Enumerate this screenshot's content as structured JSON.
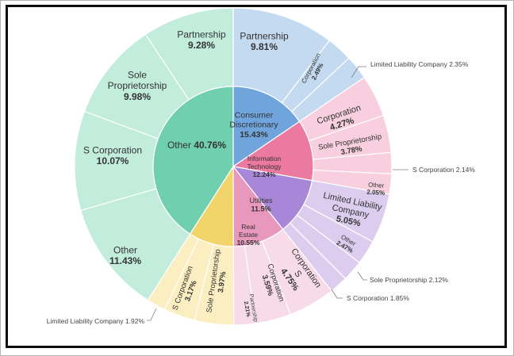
{
  "chart_data": {
    "type": "sunburst",
    "title": "",
    "children": [
      {
        "name": "Consumer Discretionary",
        "value": 15.43,
        "color": "#6fa5dc",
        "children": [
          {
            "name": "Partnership",
            "value": 9.81,
            "color": "#c4daf1"
          },
          {
            "name": "Corporation",
            "value": 2.49,
            "color": "#c4daf1"
          },
          {
            "name": "Limited Liability Company",
            "value": 2.35,
            "color": "#c4daf1"
          }
        ]
      },
      {
        "name": "Information Technology",
        "value": 12.24,
        "color": "#ec7aa0",
        "children": [
          {
            "name": "Corporation",
            "value": 4.27,
            "color": "#f8cfde"
          },
          {
            "name": "Sole Proprietorship",
            "value": 3.78,
            "color": "#f8cfde"
          },
          {
            "name": "S Corporation",
            "value": 2.14,
            "color": "#f8cfde"
          },
          {
            "name": "Other",
            "value": 2.05,
            "color": "#f8cfde"
          }
        ]
      },
      {
        "name": "Utilities",
        "value": 11.5,
        "color": "#a987d8",
        "children": [
          {
            "name": "Limited Liability Company",
            "value": 5.05,
            "color": "#dccdef"
          },
          {
            "name": "Other",
            "value": 2.47,
            "color": "#dccdef"
          },
          {
            "name": "Sole Proprietorship",
            "value": 2.12,
            "color": "#dccdef"
          },
          {
            "name": "S Corporation",
            "value": 1.85,
            "color": "#dccdef"
          }
        ]
      },
      {
        "name": "Real Estate",
        "value": 10.55,
        "color": "#e898bd",
        "children": [
          {
            "name": "S Corporation",
            "value": 4.75,
            "color": "#f7dbe8"
          },
          {
            "name": "Corporation",
            "value": 3.59,
            "color": "#f7dbe8"
          },
          {
            "name": "Partnership",
            "value": 2.21,
            "color": "#f7dbe8"
          }
        ]
      },
      {
        "name": "",
        "value": 9.06,
        "color": "#f1d56b",
        "children": [
          {
            "name": "Sole Proprietorship",
            "value": 3.97,
            "color": "#fbeec0"
          },
          {
            "name": "S Corporation",
            "value": 3.17,
            "color": "#fbeec0"
          },
          {
            "name": "Limited Liability Company",
            "value": 1.92,
            "color": "#fbeec0"
          }
        ]
      },
      {
        "name": "Other",
        "value": 40.76,
        "color": "#6fcfaf",
        "children": [
          {
            "name": "Other",
            "value": 11.43,
            "color": "#c2ecdc"
          },
          {
            "name": "S Corporation",
            "value": 10.07,
            "color": "#c2ecdc"
          },
          {
            "name": "Sole Proprietorship",
            "value": 9.98,
            "color": "#c2ecdc"
          },
          {
            "name": "Partnership",
            "value": 9.28,
            "color": "#c2ecdc"
          }
        ]
      }
    ]
  },
  "labels": {
    "inner": [
      {
        "name": "Consumer Discretionary",
        "lines": [
          "Consumer",
          "Discretionary"
        ],
        "pct": "15.43%"
      },
      {
        "name": "Information Technology",
        "lines": [
          "Information",
          "Technology"
        ],
        "pct": "12.24%"
      },
      {
        "name": "Utilities",
        "lines": [
          "Utilities"
        ],
        "pct": "11.5%"
      },
      {
        "name": "Real Estate",
        "lines": [
          "Real",
          "Estate"
        ],
        "pct": "10.55%"
      },
      {
        "name": "Other",
        "text": "Other",
        "pct": "40.76%"
      }
    ],
    "outer": [
      {
        "lines": [
          "Partnership"
        ],
        "pct": "9.81%"
      },
      {
        "lines": [
          "Corporation"
        ],
        "pct": "2.49%"
      },
      {
        "lines": [
          "Corporation"
        ],
        "pct": "4.27%"
      },
      {
        "lines": [
          "Sole Proprietorship"
        ],
        "pct": "3.78%"
      },
      {
        "lines": [
          "Other"
        ],
        "pct": "2.05%"
      },
      {
        "lines": [
          "Limited Liability",
          "Company"
        ],
        "pct": "5.05%"
      },
      {
        "lines": [
          "Other"
        ],
        "pct": "2.47%"
      },
      {
        "lines": [
          "Corporation",
          "S"
        ],
        "pct": "4.75%"
      },
      {
        "lines": [
          "Corporation"
        ],
        "pct": "3.59%"
      },
      {
        "lines": [
          "Partnership"
        ],
        "pct": "2.21%"
      },
      {
        "lines": [
          "Sole Proprietorship"
        ],
        "pct": "3.97%"
      },
      {
        "lines": [
          "S Corporation"
        ],
        "pct": "3.17%"
      },
      {
        "lines": [
          "Other"
        ],
        "pct": "11.43%"
      },
      {
        "lines": [
          "S Corporation"
        ],
        "pct": "10.07%"
      },
      {
        "lines": [
          "Sole",
          "Proprietorship"
        ],
        "pct": "9.98%"
      },
      {
        "lines": [
          "Partnership"
        ],
        "pct": "9.28%"
      }
    ],
    "callouts": [
      {
        "text": "Limited Liability Company  2.35%"
      },
      {
        "text": "S Corporation  2.14%"
      },
      {
        "text": "Sole Proprietorship  2.12%"
      },
      {
        "text": "S Corporation  1.85%"
      },
      {
        "text": "Limited Liability Company  1.92%"
      }
    ]
  }
}
